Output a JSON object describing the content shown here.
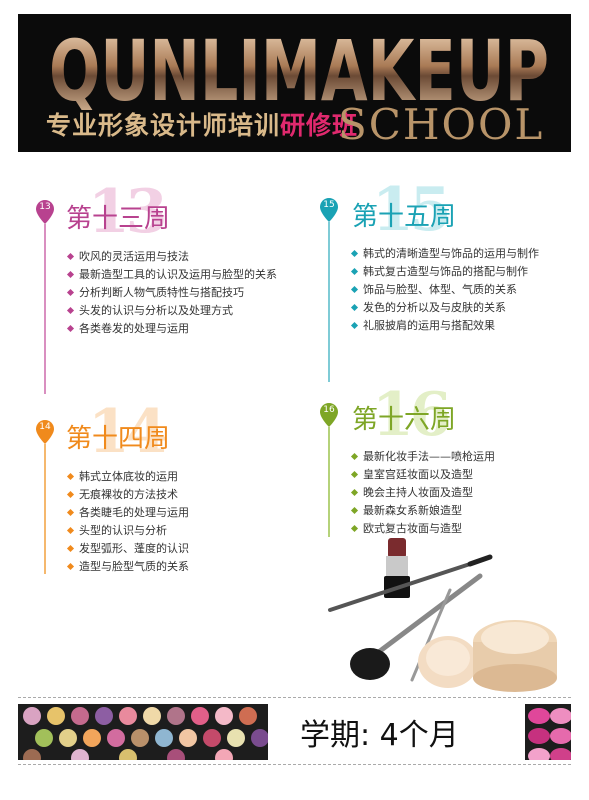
{
  "header": {
    "brand": "QUNLIMAKEUP",
    "subtitle_main": "专业形象设计师培训",
    "subtitle_highlight": "研修班",
    "school": "SCHOOL"
  },
  "weeks": [
    {
      "num": "13",
      "title": "第十三周",
      "items": [
        "吹风的灵活运用与技法",
        "最新造型工具的认识及运用与脸型的关系",
        "分析判断人物气质特性与搭配技巧",
        "头发的认识与分析以及处理方式",
        "各类卷发的处理与运用"
      ]
    },
    {
      "num": "14",
      "title": "第十四周",
      "items": [
        "韩式立体底妆的运用",
        "无痕裸妆的方法技术",
        "各类睫毛的处理与运用",
        "头型的认识与分析",
        "发型弧形、蓬度的认识",
        "造型与脸型气质的关系"
      ]
    },
    {
      "num": "15",
      "title": "第十五周",
      "items": [
        "韩式的清晰造型与饰品的运用与制作",
        "韩式复古造型与饰品的搭配与制作",
        "饰品与脸型、体型、气质的关系",
        "发色的分析以及与皮肤的关系",
        "礼服披肩的运用与搭配效果"
      ]
    },
    {
      "num": "16",
      "title": "第十六周",
      "items": [
        "最新化妆手法——喷枪运用",
        "皇室宫廷妆面以及造型",
        "晚会主持人妆面及造型",
        "最新森女系新娘造型",
        "欧式复古妆面与造型"
      ]
    }
  ],
  "footer": {
    "duration": "学期: 4个月"
  },
  "colors": {
    "week13": "#b8428f",
    "week14": "#f08a1c",
    "week15": "#1aa2b4",
    "week16": "#7ea626",
    "banner_bg": "#0b0b0b",
    "gold": "#d9b98a",
    "highlight": "#e0296e"
  },
  "icons": {
    "week_marker": "map-pin-icon",
    "bullet": "diamond-bullet-icon"
  }
}
